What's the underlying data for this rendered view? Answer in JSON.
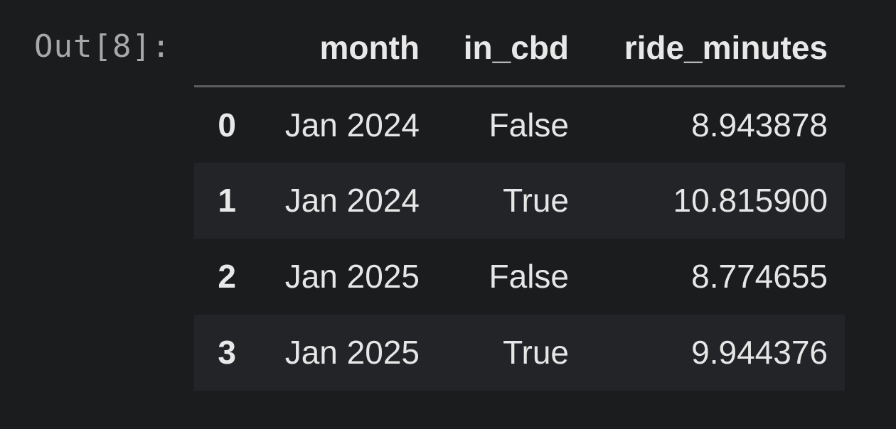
{
  "cell": {
    "prompt": "Out[8]:"
  },
  "table": {
    "columns": [
      "month",
      "in_cbd",
      "ride_minutes"
    ],
    "rows": [
      {
        "index": "0",
        "month": "Jan 2024",
        "in_cbd": "False",
        "ride_minutes": "8.943878"
      },
      {
        "index": "1",
        "month": "Jan 2024",
        "in_cbd": "True",
        "ride_minutes": "10.815900"
      },
      {
        "index": "2",
        "month": "Jan 2025",
        "in_cbd": "False",
        "ride_minutes": "8.774655"
      },
      {
        "index": "3",
        "month": "Jan 2025",
        "in_cbd": "True",
        "ride_minutes": "9.944376"
      }
    ]
  },
  "colors": {
    "background": "#1b1c1e",
    "stripe": "#232427",
    "text": "#e6e6e6",
    "prompt": "#a8a8a8",
    "header_rule": "#5c5d60"
  }
}
